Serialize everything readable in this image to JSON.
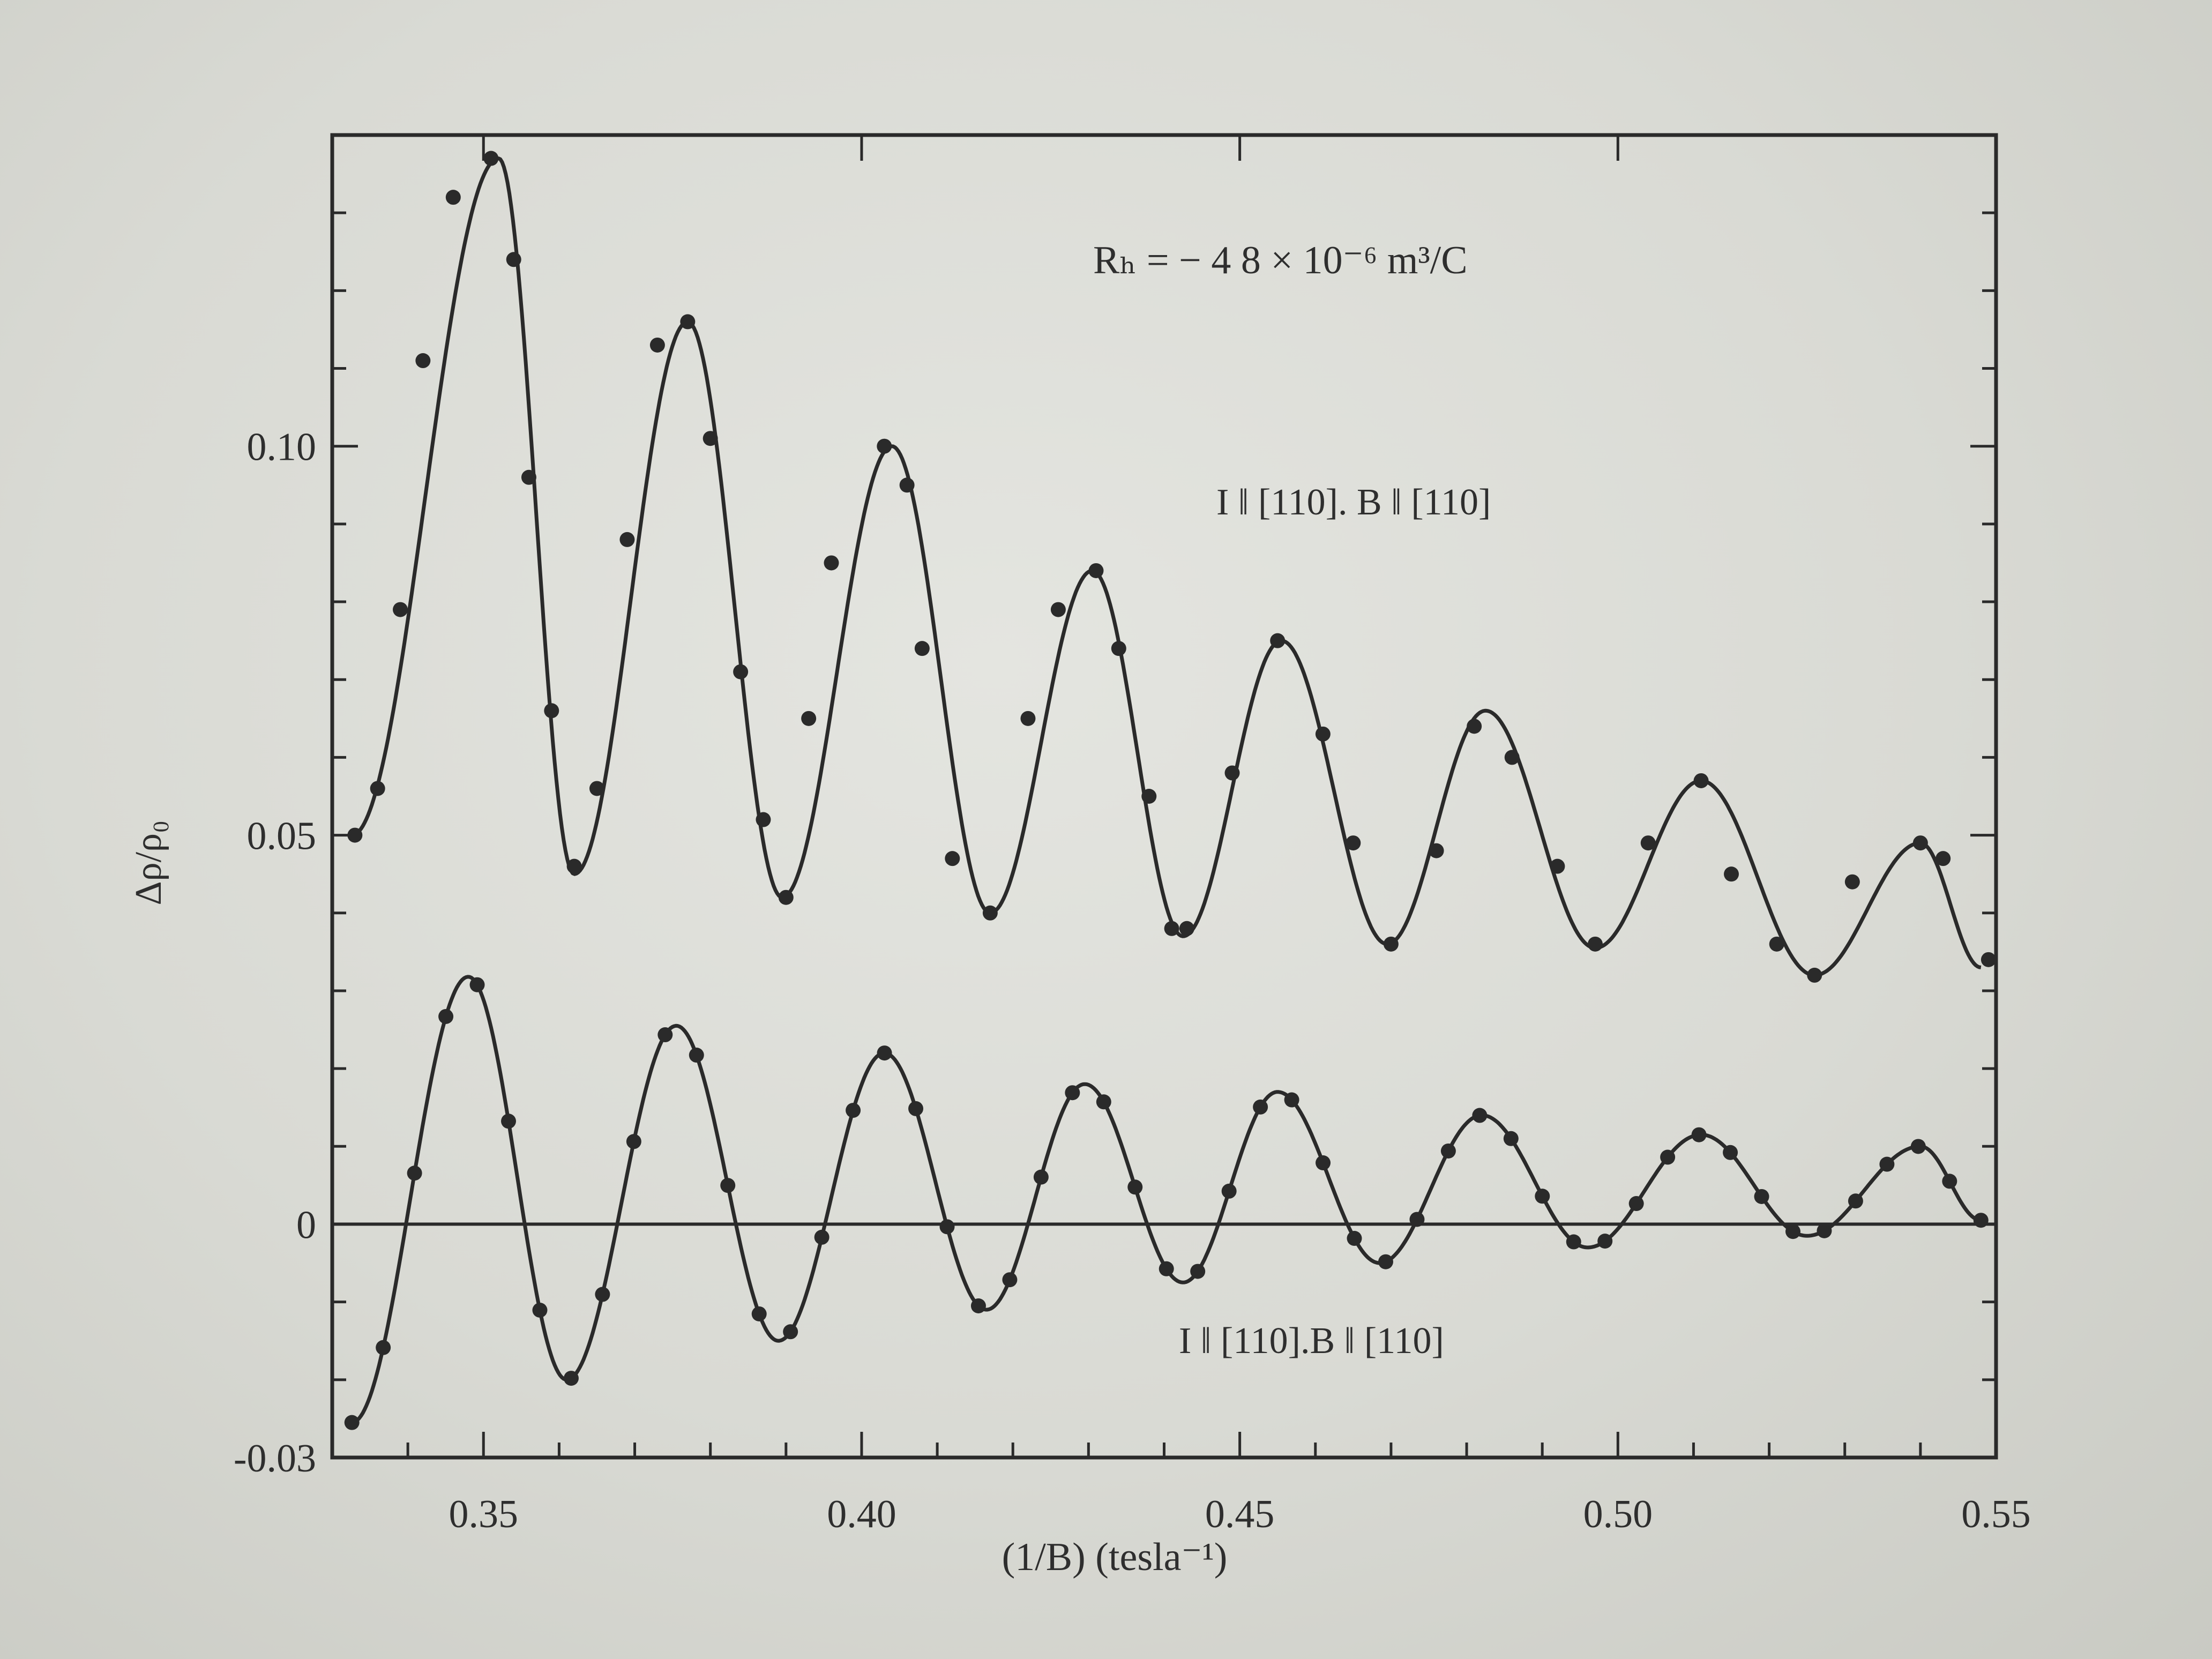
{
  "chart_data": {
    "type": "line",
    "title": "",
    "xlabel": "(1/B)   (tesla⁻¹)",
    "ylabel": "Δρ/ρ₀",
    "xlim": [
      0.33,
      0.55
    ],
    "ylim": [
      -0.03,
      0.14
    ],
    "grid": false,
    "legend": "none",
    "x_ticks": [
      {
        "value": 0.35,
        "label": "0.35"
      },
      {
        "value": 0.4,
        "label": "0.40"
      },
      {
        "value": 0.45,
        "label": "0.45"
      },
      {
        "value": 0.5,
        "label": "0.50"
      },
      {
        "value": 0.55,
        "label": "0.55"
      }
    ],
    "y_ticks": [
      {
        "value": -0.03,
        "label": "-0.03"
      },
      {
        "value": 0,
        "label": "0"
      },
      {
        "value": 0.05,
        "label": "0.05"
      },
      {
        "value": 0.1,
        "label": "0.10"
      }
    ],
    "annotations": {
      "hall": "Rₕ =  − 4 8 × 10⁻⁶ m³/C",
      "upper_curve": "I ‖ [110]. B ‖ [110]",
      "lower_curve": "I ‖ [110].B ‖ [110]"
    },
    "series": [
      {
        "color": "#2a2a2a",
        "extrema_x": [
          0.3326,
          0.352,
          0.362,
          0.377,
          0.3895,
          0.404,
          0.417,
          0.4305,
          0.4425,
          0.4555,
          0.4695,
          0.4825,
          0.497,
          0.511,
          0.526,
          0.54,
          0.548
        ],
        "extrema_y": [
          0.05,
          0.137,
          0.045,
          0.116,
          0.042,
          0.1,
          0.04,
          0.084,
          0.037,
          0.075,
          0.036,
          0.066,
          0.0355,
          0.057,
          0.032,
          0.049,
          0.033
        ],
        "points": [
          [
            0.333,
            0.05
          ],
          [
            0.336,
            0.056
          ],
          [
            0.339,
            0.079
          ],
          [
            0.342,
            0.111
          ],
          [
            0.346,
            0.132
          ],
          [
            0.351,
            0.137
          ],
          [
            0.354,
            0.124
          ],
          [
            0.356,
            0.096
          ],
          [
            0.359,
            0.066
          ],
          [
            0.362,
            0.046
          ],
          [
            0.365,
            0.056
          ],
          [
            0.369,
            0.088
          ],
          [
            0.373,
            0.113
          ],
          [
            0.377,
            0.116
          ],
          [
            0.38,
            0.101
          ],
          [
            0.384,
            0.071
          ],
          [
            0.387,
            0.052
          ],
          [
            0.39,
            0.042
          ],
          [
            0.393,
            0.065
          ],
          [
            0.396,
            0.085
          ],
          [
            0.403,
            0.1
          ],
          [
            0.406,
            0.095
          ],
          [
            0.408,
            0.074
          ],
          [
            0.412,
            0.047
          ],
          [
            0.417,
            0.04
          ],
          [
            0.422,
            0.065
          ],
          [
            0.426,
            0.079
          ],
          [
            0.431,
            0.084
          ],
          [
            0.434,
            0.074
          ],
          [
            0.438,
            0.055
          ],
          [
            0.441,
            0.038
          ],
          [
            0.443,
            0.038
          ],
          [
            0.449,
            0.058
          ],
          [
            0.455,
            0.075
          ],
          [
            0.461,
            0.063
          ],
          [
            0.465,
            0.049
          ],
          [
            0.47,
            0.036
          ],
          [
            0.476,
            0.048
          ],
          [
            0.481,
            0.064
          ],
          [
            0.486,
            0.06
          ],
          [
            0.492,
            0.046
          ],
          [
            0.497,
            0.036
          ],
          [
            0.504,
            0.049
          ],
          [
            0.511,
            0.057
          ],
          [
            0.515,
            0.045
          ],
          [
            0.521,
            0.036
          ],
          [
            0.526,
            0.032
          ],
          [
            0.531,
            0.044
          ],
          [
            0.54,
            0.049
          ],
          [
            0.543,
            0.047
          ],
          [
            0.549,
            0.034
          ]
        ]
      },
      {
        "color": "#2a2a2a",
        "extrema_x": [
          0.3326,
          0.348,
          0.361,
          0.3755,
          0.389,
          0.403,
          0.4165,
          0.4295,
          0.4425,
          0.455,
          0.4685,
          0.482,
          0.496,
          0.511,
          0.525,
          0.54,
          0.548
        ],
        "extrema_y": [
          -0.0255,
          0.0318,
          -0.02,
          0.0255,
          -0.015,
          0.022,
          -0.011,
          0.018,
          -0.0075,
          0.017,
          -0.005,
          0.014,
          -0.003,
          0.0115,
          -0.0015,
          0.01,
          0.0005
        ]
      }
    ]
  }
}
